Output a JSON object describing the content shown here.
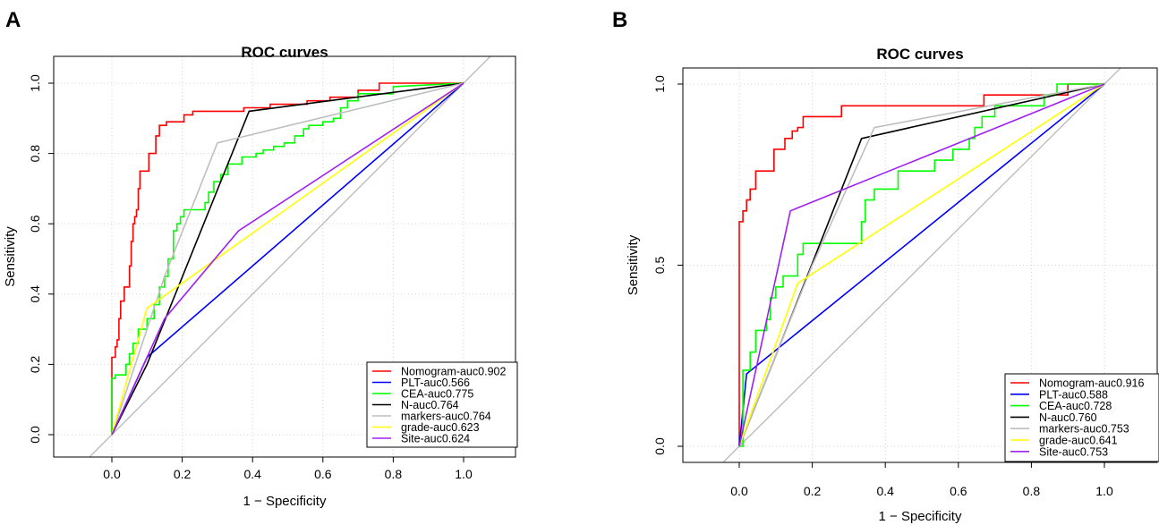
{
  "chart_data": [
    {
      "panel_label": "A",
      "type": "line",
      "title": "ROC curves",
      "xlabel": "1 − Specificity",
      "ylabel": "Sensitivity",
      "xlim": [
        -0.15,
        1.15
      ],
      "ylim": [
        -0.05,
        1.05
      ],
      "xticks": [
        0.0,
        0.2,
        0.4,
        0.6,
        0.8,
        1.0
      ],
      "xtick_labels": [
        "0.0",
        "0.2",
        "0.4",
        "0.6",
        "0.8",
        "1.0"
      ],
      "yticks": [
        0.0,
        0.2,
        0.4,
        0.6,
        0.8,
        1.0
      ],
      "ytick_labels": [
        "0.0",
        "0.2",
        "0.4",
        "0.6",
        "0.8",
        "1.0"
      ],
      "grid": true,
      "legend_position": "bottom-right",
      "diagonal_color": "#b4b4b4",
      "series": [
        {
          "name": "Nomogram-auc0.902",
          "color": "#ff0000",
          "points": [
            [
              0,
              0
            ],
            [
              0,
              0.22
            ],
            [
              0.01,
              0.22
            ],
            [
              0.01,
              0.25
            ],
            [
              0.015,
              0.25
            ],
            [
              0.015,
              0.27
            ],
            [
              0.02,
              0.27
            ],
            [
              0.02,
              0.33
            ],
            [
              0.025,
              0.33
            ],
            [
              0.025,
              0.38
            ],
            [
              0.035,
              0.38
            ],
            [
              0.035,
              0.42
            ],
            [
              0.05,
              0.42
            ],
            [
              0.05,
              0.48
            ],
            [
              0.055,
              0.48
            ],
            [
              0.055,
              0.55
            ],
            [
              0.06,
              0.55
            ],
            [
              0.06,
              0.6
            ],
            [
              0.065,
              0.6
            ],
            [
              0.065,
              0.62
            ],
            [
              0.07,
              0.62
            ],
            [
              0.07,
              0.64
            ],
            [
              0.075,
              0.64
            ],
            [
              0.075,
              0.7
            ],
            [
              0.08,
              0.7
            ],
            [
              0.08,
              0.75
            ],
            [
              0.105,
              0.75
            ],
            [
              0.105,
              0.8
            ],
            [
              0.125,
              0.8
            ],
            [
              0.125,
              0.85
            ],
            [
              0.135,
              0.85
            ],
            [
              0.135,
              0.88
            ],
            [
              0.155,
              0.88
            ],
            [
              0.155,
              0.89
            ],
            [
              0.205,
              0.89
            ],
            [
              0.205,
              0.91
            ],
            [
              0.23,
              0.91
            ],
            [
              0.23,
              0.92
            ],
            [
              0.375,
              0.92
            ],
            [
              0.375,
              0.93
            ],
            [
              0.45,
              0.93
            ],
            [
              0.45,
              0.94
            ],
            [
              0.555,
              0.94
            ],
            [
              0.555,
              0.95
            ],
            [
              0.62,
              0.95
            ],
            [
              0.62,
              0.96
            ],
            [
              0.7,
              0.96
            ],
            [
              0.7,
              0.98
            ],
            [
              0.76,
              0.98
            ],
            [
              0.76,
              1.0
            ],
            [
              0.83,
              1.0
            ],
            [
              0.83,
              1.0
            ],
            [
              1,
              1
            ]
          ]
        },
        {
          "name": "PLT-auc0.566",
          "color": "#0000ff",
          "points": [
            [
              0,
              0
            ],
            [
              0.1,
              0.22
            ],
            [
              1,
              1
            ]
          ]
        },
        {
          "name": "CEA-auc0.775",
          "color": "#00ff00",
          "points": [
            [
              0,
              0
            ],
            [
              0,
              0.16
            ],
            [
              0.01,
              0.16
            ],
            [
              0.01,
              0.17
            ],
            [
              0.04,
              0.17
            ],
            [
              0.04,
              0.2
            ],
            [
              0.05,
              0.2
            ],
            [
              0.05,
              0.23
            ],
            [
              0.06,
              0.23
            ],
            [
              0.06,
              0.26
            ],
            [
              0.075,
              0.26
            ],
            [
              0.075,
              0.3
            ],
            [
              0.1,
              0.3
            ],
            [
              0.1,
              0.33
            ],
            [
              0.12,
              0.33
            ],
            [
              0.12,
              0.37
            ],
            [
              0.135,
              0.37
            ],
            [
              0.135,
              0.42
            ],
            [
              0.15,
              0.42
            ],
            [
              0.15,
              0.45
            ],
            [
              0.16,
              0.45
            ],
            [
              0.16,
              0.5
            ],
            [
              0.175,
              0.5
            ],
            [
              0.175,
              0.58
            ],
            [
              0.185,
              0.58
            ],
            [
              0.185,
              0.6
            ],
            [
              0.195,
              0.6
            ],
            [
              0.195,
              0.62
            ],
            [
              0.205,
              0.62
            ],
            [
              0.205,
              0.64
            ],
            [
              0.265,
              0.64
            ],
            [
              0.265,
              0.66
            ],
            [
              0.275,
              0.66
            ],
            [
              0.275,
              0.69
            ],
            [
              0.29,
              0.69
            ],
            [
              0.29,
              0.72
            ],
            [
              0.31,
              0.72
            ],
            [
              0.31,
              0.74
            ],
            [
              0.33,
              0.74
            ],
            [
              0.33,
              0.77
            ],
            [
              0.37,
              0.77
            ],
            [
              0.37,
              0.79
            ],
            [
              0.41,
              0.79
            ],
            [
              0.41,
              0.8
            ],
            [
              0.43,
              0.8
            ],
            [
              0.43,
              0.81
            ],
            [
              0.46,
              0.81
            ],
            [
              0.46,
              0.82
            ],
            [
              0.49,
              0.82
            ],
            [
              0.49,
              0.83
            ],
            [
              0.52,
              0.83
            ],
            [
              0.52,
              0.85
            ],
            [
              0.545,
              0.85
            ],
            [
              0.545,
              0.87
            ],
            [
              0.56,
              0.87
            ],
            [
              0.56,
              0.88
            ],
            [
              0.6,
              0.88
            ],
            [
              0.6,
              0.89
            ],
            [
              0.63,
              0.89
            ],
            [
              0.63,
              0.9
            ],
            [
              0.65,
              0.9
            ],
            [
              0.65,
              0.93
            ],
            [
              0.67,
              0.93
            ],
            [
              0.67,
              0.95
            ],
            [
              0.7,
              0.95
            ],
            [
              0.7,
              0.97
            ],
            [
              0.8,
              0.97
            ],
            [
              0.8,
              0.99
            ],
            [
              1,
              1
            ]
          ]
        },
        {
          "name": "N-auc0.764",
          "color": "#000000",
          "points": [
            [
              0,
              0
            ],
            [
              0.1,
              0.2
            ],
            [
              0.39,
              0.92
            ],
            [
              1,
              1
            ]
          ]
        },
        {
          "name": "markers-auc0.764",
          "color": "#bebebe",
          "points": [
            [
              0,
              0
            ],
            [
              0.15,
              0.45
            ],
            [
              0.3,
              0.83
            ],
            [
              1,
              1
            ]
          ]
        },
        {
          "name": "grade-auc0.623",
          "color": "#ffff00",
          "points": [
            [
              0,
              0
            ],
            [
              0.1,
              0.36
            ],
            [
              1,
              1
            ]
          ]
        },
        {
          "name": "Site-auc0.624",
          "color": "#a020f0",
          "points": [
            [
              0,
              0
            ],
            [
              0.15,
              0.33
            ],
            [
              0.36,
              0.58
            ],
            [
              1,
              1
            ]
          ]
        }
      ]
    },
    {
      "panel_label": "B",
      "type": "line",
      "title": "ROC curves",
      "xlabel": "1 − Specificity",
      "ylabel": "Sensitivity",
      "xlim": [
        -0.15,
        1.15
      ],
      "ylim": [
        -0.05,
        1.05
      ],
      "xticks": [
        0.0,
        0.2,
        0.4,
        0.6,
        0.8,
        1.0
      ],
      "xtick_labels": [
        "0.0",
        "0.2",
        "0.4",
        "0.6",
        "0.8",
        "1.0"
      ],
      "yticks": [
        0.0,
        0.5,
        1.0
      ],
      "ytick_labels": [
        "0.0",
        "0.5",
        "1.0"
      ],
      "grid": true,
      "legend_position": "bottom-right",
      "diagonal_color": "#b4b4b4",
      "series": [
        {
          "name": "Nomogram-auc0.916",
          "color": "#ff0000",
          "points": [
            [
              0,
              0
            ],
            [
              0,
              0.62
            ],
            [
              0.01,
              0.62
            ],
            [
              0.01,
              0.65
            ],
            [
              0.02,
              0.65
            ],
            [
              0.02,
              0.68
            ],
            [
              0.03,
              0.68
            ],
            [
              0.03,
              0.71
            ],
            [
              0.045,
              0.71
            ],
            [
              0.045,
              0.76
            ],
            [
              0.095,
              0.76
            ],
            [
              0.095,
              0.82
            ],
            [
              0.125,
              0.82
            ],
            [
              0.125,
              0.85
            ],
            [
              0.145,
              0.85
            ],
            [
              0.145,
              0.87
            ],
            [
              0.16,
              0.87
            ],
            [
              0.16,
              0.88
            ],
            [
              0.175,
              0.88
            ],
            [
              0.175,
              0.91
            ],
            [
              0.28,
              0.91
            ],
            [
              0.28,
              0.94
            ],
            [
              0.67,
              0.94
            ],
            [
              0.67,
              0.97
            ],
            [
              0.9,
              0.97
            ],
            [
              0.9,
              1.0
            ],
            [
              1,
              1
            ]
          ]
        },
        {
          "name": "PLT-auc0.588",
          "color": "#0000ff",
          "points": [
            [
              0,
              0
            ],
            [
              0.02,
              0.2
            ],
            [
              1,
              1
            ]
          ]
        },
        {
          "name": "CEA-auc0.728",
          "color": "#00ff00",
          "points": [
            [
              0,
              0
            ],
            [
              0.01,
              0
            ],
            [
              0.01,
              0.21
            ],
            [
              0.03,
              0.21
            ],
            [
              0.03,
              0.26
            ],
            [
              0.045,
              0.26
            ],
            [
              0.045,
              0.32
            ],
            [
              0.075,
              0.32
            ],
            [
              0.075,
              0.35
            ],
            [
              0.085,
              0.35
            ],
            [
              0.085,
              0.41
            ],
            [
              0.1,
              0.41
            ],
            [
              0.1,
              0.44
            ],
            [
              0.12,
              0.44
            ],
            [
              0.12,
              0.47
            ],
            [
              0.16,
              0.47
            ],
            [
              0.16,
              0.53
            ],
            [
              0.175,
              0.53
            ],
            [
              0.175,
              0.56
            ],
            [
              0.335,
              0.56
            ],
            [
              0.335,
              0.62
            ],
            [
              0.345,
              0.62
            ],
            [
              0.345,
              0.68
            ],
            [
              0.37,
              0.68
            ],
            [
              0.37,
              0.71
            ],
            [
              0.435,
              0.71
            ],
            [
              0.435,
              0.76
            ],
            [
              0.535,
              0.76
            ],
            [
              0.535,
              0.79
            ],
            [
              0.585,
              0.79
            ],
            [
              0.585,
              0.82
            ],
            [
              0.63,
              0.82
            ],
            [
              0.63,
              0.85
            ],
            [
              0.645,
              0.85
            ],
            [
              0.645,
              0.88
            ],
            [
              0.665,
              0.88
            ],
            [
              0.665,
              0.91
            ],
            [
              0.7,
              0.91
            ],
            [
              0.7,
              0.94
            ],
            [
              0.835,
              0.94
            ],
            [
              0.835,
              0.97
            ],
            [
              0.87,
              0.97
            ],
            [
              0.87,
              1.0
            ],
            [
              1,
              1
            ]
          ]
        },
        {
          "name": "N-auc0.760",
          "color": "#000000",
          "points": [
            [
              0,
              0
            ],
            [
              0.1,
              0.25
            ],
            [
              0.335,
              0.85
            ],
            [
              1,
              1
            ]
          ]
        },
        {
          "name": "markers-auc0.753",
          "color": "#bebebe",
          "points": [
            [
              0,
              0
            ],
            [
              0.2,
              0.5
            ],
            [
              0.37,
              0.88
            ],
            [
              1,
              1
            ]
          ]
        },
        {
          "name": "grade-auc0.641",
          "color": "#ffff00",
          "points": [
            [
              0,
              0
            ],
            [
              0.16,
              0.45
            ],
            [
              1,
              1
            ]
          ]
        },
        {
          "name": "Site-auc0.753",
          "color": "#a020f0",
          "points": [
            [
              0,
              0
            ],
            [
              0.14,
              0.65
            ],
            [
              1,
              1
            ]
          ]
        }
      ]
    }
  ]
}
